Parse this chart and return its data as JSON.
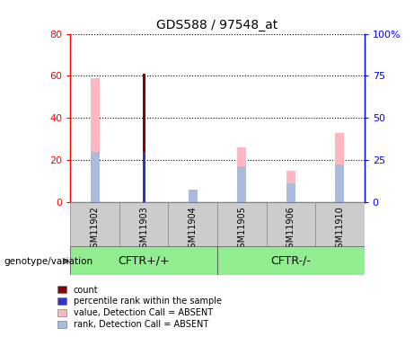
{
  "title": "GDS588 / 97548_at",
  "samples": [
    "GSM11902",
    "GSM11903",
    "GSM11904",
    "GSM11905",
    "GSM11906",
    "GSM11910"
  ],
  "group_labels": [
    "CFTR+/+",
    "CFTR-/-"
  ],
  "value_absent": [
    59,
    0,
    0,
    26,
    15,
    33
  ],
  "rank_absent": [
    24,
    0,
    6,
    17,
    9,
    18
  ],
  "count": [
    0,
    61,
    0,
    0,
    0,
    0
  ],
  "percentile_rank": [
    0,
    24,
    0,
    0,
    0,
    0
  ],
  "ylim_left": [
    0,
    80
  ],
  "ylim_right": [
    0,
    100
  ],
  "yticks_left": [
    0,
    20,
    40,
    60,
    80
  ],
  "ytick_labels_left": [
    "0",
    "20",
    "40",
    "60",
    "80"
  ],
  "yticks_right": [
    0,
    25,
    50,
    75,
    100
  ],
  "ytick_labels_right": [
    "0",
    "25",
    "50",
    "75",
    "100%"
  ],
  "color_count": "#8B0000",
  "color_percentile": "#3333CC",
  "color_value_absent": "#FFB6C1",
  "color_rank_absent": "#AABBDD",
  "group_color": "#90EE90",
  "sample_bg_color": "#CCCCCC",
  "legend_labels": [
    "count",
    "percentile rank within the sample",
    "value, Detection Call = ABSENT",
    "rank, Detection Call = ABSENT"
  ],
  "genotype_label": "genotype/variation"
}
